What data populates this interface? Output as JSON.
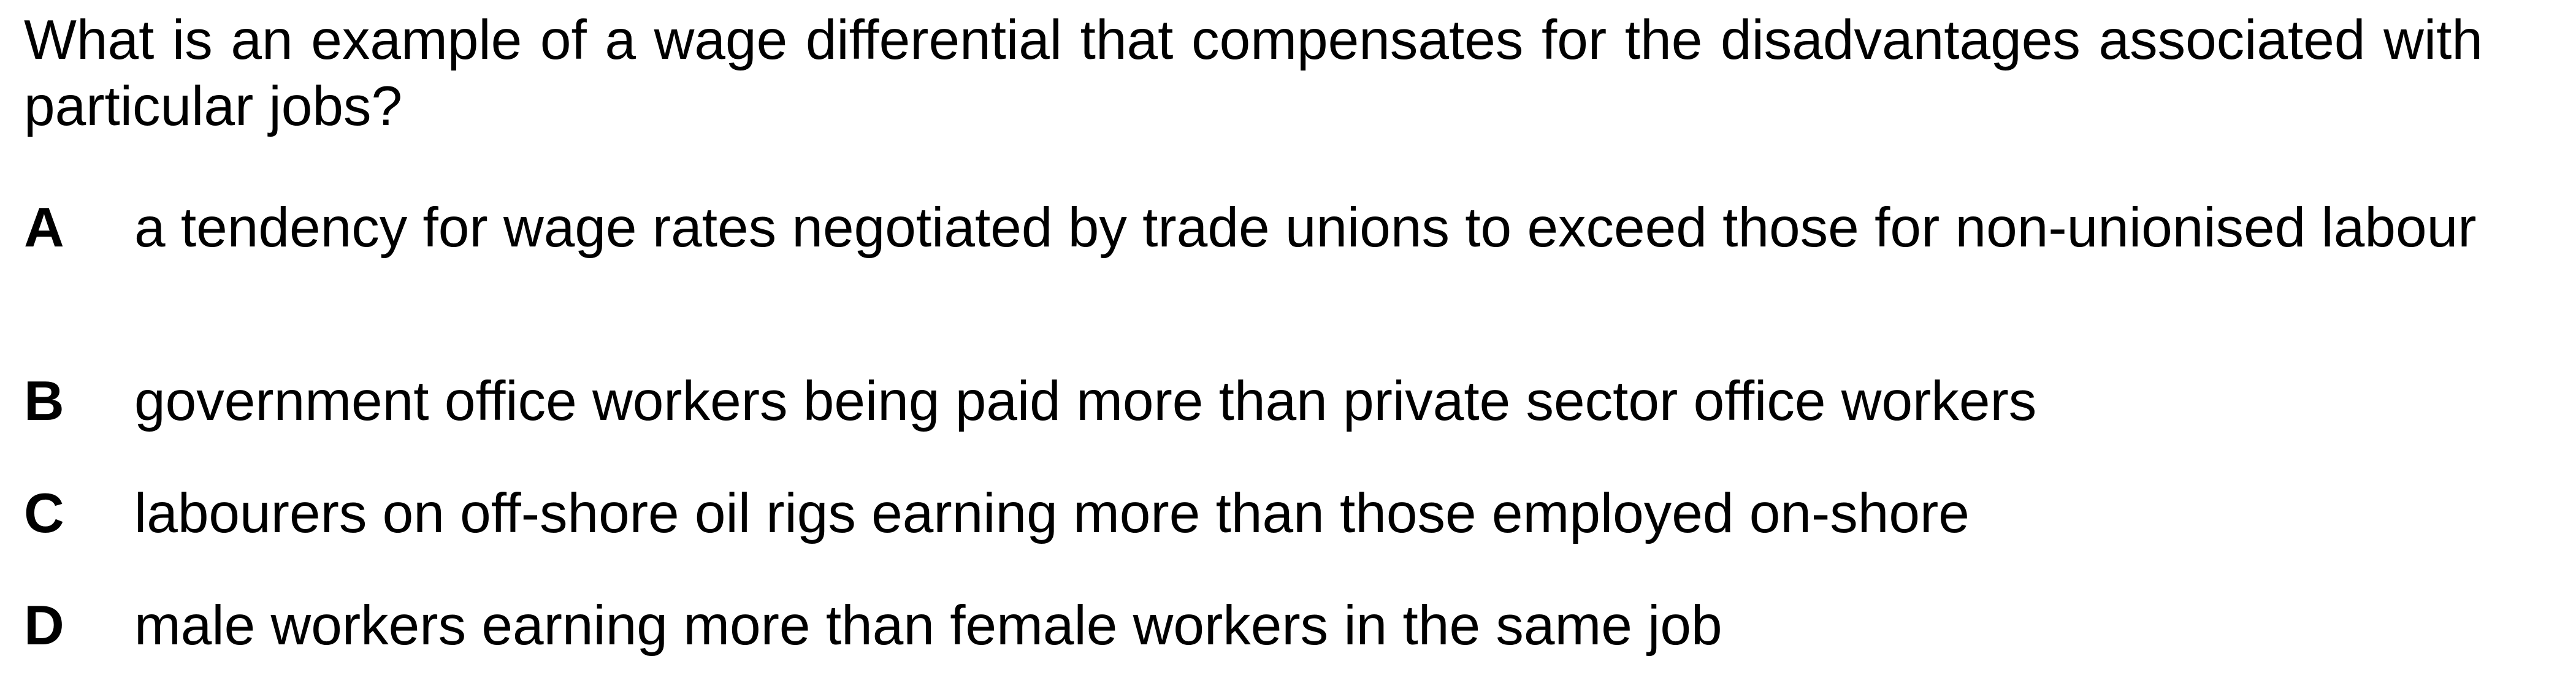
{
  "question": {
    "text": "What is an example of a wage differential that compensates for the disadvantages associated with particular jobs?"
  },
  "options": [
    {
      "letter": "A",
      "text": "a tendency for wage rates negotiated by trade unions to exceed those for non-unionised labour"
    },
    {
      "letter": "B",
      "text": "government office workers being paid more than private sector office workers"
    },
    {
      "letter": "C",
      "text": "labourers on off-shore oil rigs earning more than those employed on-shore"
    },
    {
      "letter": "D",
      "text": "male workers earning more than female workers in the same job"
    }
  ]
}
